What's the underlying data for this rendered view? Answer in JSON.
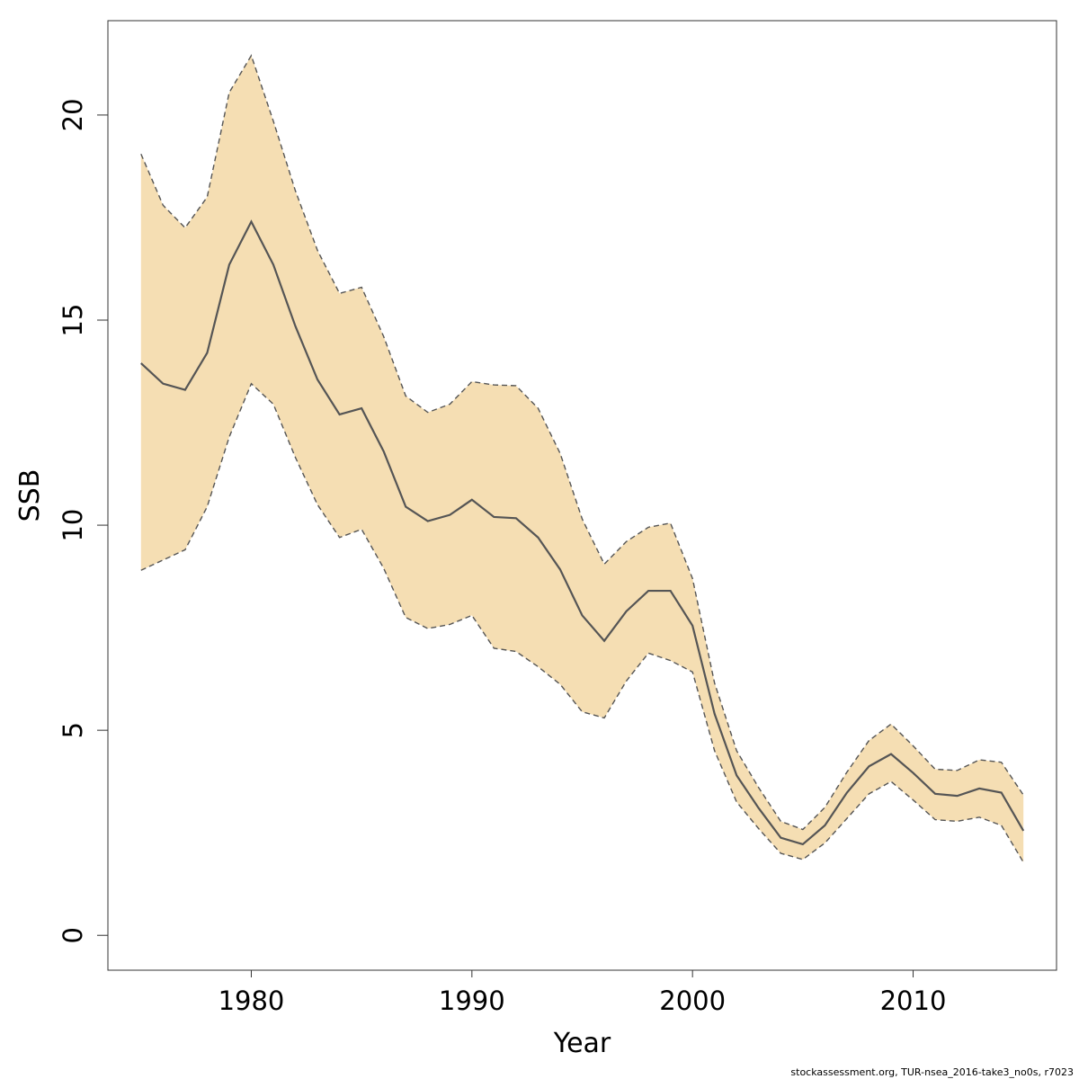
{
  "chart_data": {
    "type": "area",
    "xlabel": "Year",
    "ylabel": "SSB",
    "xlim": [
      1973.5,
      2016.5
    ],
    "ylim": [
      -0.85,
      22.3
    ],
    "x_ticks": [
      1980,
      1990,
      2000,
      2010
    ],
    "y_ticks": [
      0,
      5,
      10,
      15,
      20
    ],
    "grid": false,
    "band_color": "#f5deb3",
    "line_color": "#555555",
    "x": [
      1975,
      1976,
      1977,
      1978,
      1979,
      1980,
      1981,
      1982,
      1983,
      1984,
      1985,
      1986,
      1987,
      1988,
      1989,
      1990,
      1991,
      1992,
      1993,
      1994,
      1995,
      1996,
      1997,
      1998,
      1999,
      2000,
      2001,
      2002,
      2003,
      2004,
      2005,
      2006,
      2007,
      2008,
      2009,
      2010,
      2011,
      2012,
      2013,
      2014,
      2015
    ],
    "series": [
      {
        "values": [
          13.95,
          13.45,
          13.3,
          14.2,
          16.35,
          17.4,
          16.35,
          14.85,
          13.55,
          12.7,
          12.85,
          11.8,
          10.45,
          10.1,
          10.25,
          10.62,
          10.2,
          10.17,
          9.7,
          8.92,
          7.8,
          7.18,
          7.9,
          8.4,
          8.4,
          7.55,
          5.4,
          3.9,
          3.1,
          2.38,
          2.22,
          2.68,
          3.48,
          4.12,
          4.42,
          3.96,
          3.45,
          3.4,
          3.58,
          3.48,
          2.55
        ]
      },
      {
        "values": [
          19.05,
          17.8,
          17.25,
          18.0,
          20.55,
          21.45,
          19.85,
          18.15,
          16.7,
          15.65,
          15.8,
          14.6,
          13.15,
          12.75,
          12.95,
          13.5,
          13.42,
          13.4,
          12.85,
          11.75,
          10.15,
          9.05,
          9.6,
          9.95,
          10.05,
          8.7,
          6.15,
          4.5,
          3.6,
          2.78,
          2.58,
          3.12,
          3.98,
          4.75,
          5.15,
          4.62,
          4.05,
          4.02,
          4.28,
          4.22,
          3.42
        ]
      },
      {
        "values": [
          8.9,
          9.15,
          9.4,
          10.45,
          12.15,
          13.45,
          12.95,
          11.65,
          10.5,
          9.7,
          9.9,
          8.95,
          7.75,
          7.48,
          7.58,
          7.8,
          7.0,
          6.92,
          6.55,
          6.12,
          5.45,
          5.3,
          6.2,
          6.88,
          6.7,
          6.42,
          4.5,
          3.25,
          2.6,
          2.0,
          1.85,
          2.25,
          2.85,
          3.45,
          3.75,
          3.3,
          2.82,
          2.78,
          2.88,
          2.68,
          1.78
        ]
      }
    ]
  },
  "footer": {
    "credit": "stockassessment.org, TUR-nsea_2016-take3_no0s, r7023"
  }
}
